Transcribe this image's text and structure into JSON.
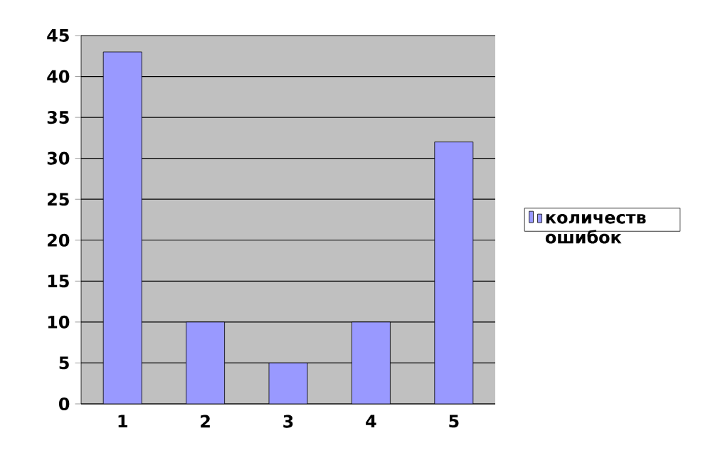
{
  "chart_data": {
    "type": "bar",
    "categories": [
      "1",
      "2",
      "3",
      "4",
      "5"
    ],
    "series": [
      {
        "name": "количеств ошибок",
        "color": "#9999ff",
        "values": [
          43,
          10,
          5,
          10,
          32
        ]
      }
    ],
    "ylim": [
      0,
      45
    ],
    "yticks": [
      0,
      5,
      10,
      15,
      20,
      25,
      30,
      35,
      40,
      45
    ],
    "grid": "y",
    "legend": "right"
  }
}
